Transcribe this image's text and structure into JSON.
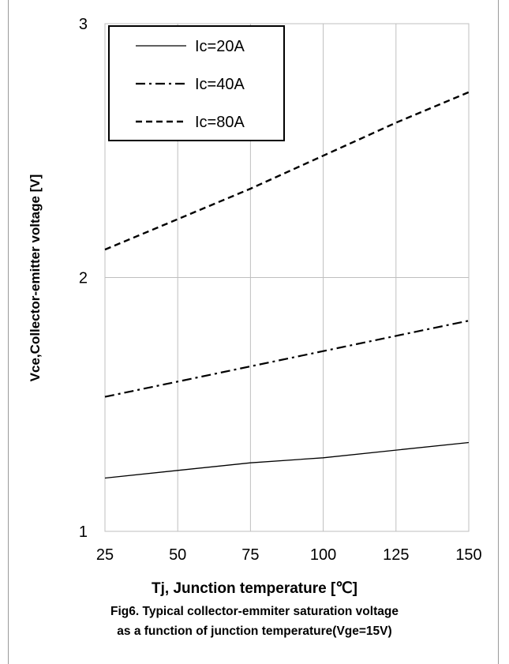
{
  "chart_data": {
    "type": "line",
    "title": "",
    "xlabel": "Tj, Junction temperature [℃]",
    "ylabel": "Vce,Collector-emitter voltage [V]",
    "xlim": [
      25,
      150
    ],
    "ylim": [
      1,
      3
    ],
    "x_ticks": [
      "25",
      "50",
      "75",
      "100",
      "125",
      "150"
    ],
    "y_ticks": [
      "1",
      "2",
      "3"
    ],
    "grid": true,
    "legend_position": "top-left",
    "x": [
      25,
      50,
      75,
      100,
      125,
      150
    ],
    "series": [
      {
        "name": "Ic=20A",
        "style": "solid",
        "values": [
          1.21,
          1.24,
          1.27,
          1.29,
          1.32,
          1.35
        ]
      },
      {
        "name": "Ic=40A",
        "style": "dash-dot",
        "values": [
          1.53,
          1.59,
          1.65,
          1.71,
          1.77,
          1.83
        ]
      },
      {
        "name": "Ic=80A",
        "style": "dashed",
        "values": [
          2.11,
          2.23,
          2.35,
          2.48,
          2.61,
          2.73
        ]
      }
    ],
    "line_color": "#000000",
    "grid_color": "#bfbfbf"
  },
  "captions": {
    "line1": "Fig6. Typical collector-emmiter saturation voltage",
    "line2": "as a function of junction temperature(Vge=15V)"
  }
}
